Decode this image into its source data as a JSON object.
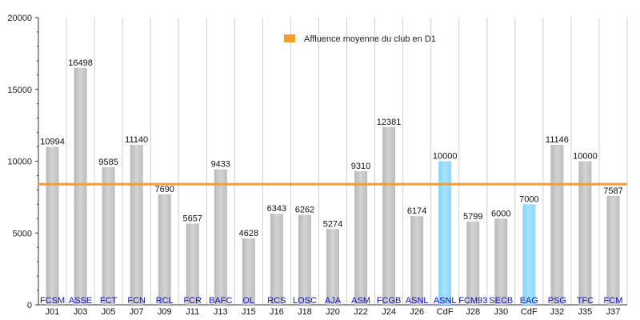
{
  "chart_data": {
    "type": "bar",
    "ylim": [
      0,
      20000
    ],
    "yticks": [
      0,
      5000,
      10000,
      15000,
      20000
    ],
    "grid": "vertical",
    "average_line": {
      "value": 8400,
      "label": "Affluence moyenne du club en D1"
    },
    "legend_position": "top-center",
    "colors": {
      "bar": "#cccccc",
      "highlight": "#99ddff",
      "average": "#f79d2a",
      "club_text": "#1010c0"
    },
    "bars": [
      {
        "club": "FCSM",
        "match": "J01",
        "value": 10994,
        "highlight": false
      },
      {
        "club": "ASSE",
        "match": "J03",
        "value": 16498,
        "highlight": false
      },
      {
        "club": "FCT",
        "match": "J05",
        "value": 9585,
        "highlight": false
      },
      {
        "club": "FCN",
        "match": "J07",
        "value": 11140,
        "highlight": false
      },
      {
        "club": "RCL",
        "match": "J09",
        "value": 7690,
        "highlight": false
      },
      {
        "club": "FCR",
        "match": "J11",
        "value": 5657,
        "highlight": false
      },
      {
        "club": "BAFC",
        "match": "J13",
        "value": 9433,
        "highlight": false
      },
      {
        "club": "OL",
        "match": "J15",
        "value": 4628,
        "highlight": false
      },
      {
        "club": "RCS",
        "match": "J16",
        "value": 6343,
        "highlight": false
      },
      {
        "club": "LOSC",
        "match": "J18",
        "value": 6262,
        "highlight": false
      },
      {
        "club": "AJA",
        "match": "J20",
        "value": 5274,
        "highlight": false
      },
      {
        "club": "ASM",
        "match": "J22",
        "value": 9310,
        "highlight": false
      },
      {
        "club": "FCGB",
        "match": "J24",
        "value": 12381,
        "highlight": false
      },
      {
        "club": "ASNL",
        "match": "J26",
        "value": 6174,
        "highlight": false
      },
      {
        "club": "ASNL",
        "match": "CdF",
        "value": 10000,
        "highlight": true
      },
      {
        "club": "FCM93",
        "match": "J28",
        "value": 5799,
        "highlight": false
      },
      {
        "club": "SECB",
        "match": "J30",
        "value": 6000,
        "highlight": false
      },
      {
        "club": "EAG",
        "match": "CdF",
        "value": 7000,
        "highlight": true
      },
      {
        "club": "PSG",
        "match": "J32",
        "value": 11146,
        "highlight": false
      },
      {
        "club": "TFC",
        "match": "J35",
        "value": 10000,
        "highlight": false
      },
      {
        "club": "FCM",
        "match": "J37",
        "value": 7587,
        "highlight": false
      }
    ]
  }
}
